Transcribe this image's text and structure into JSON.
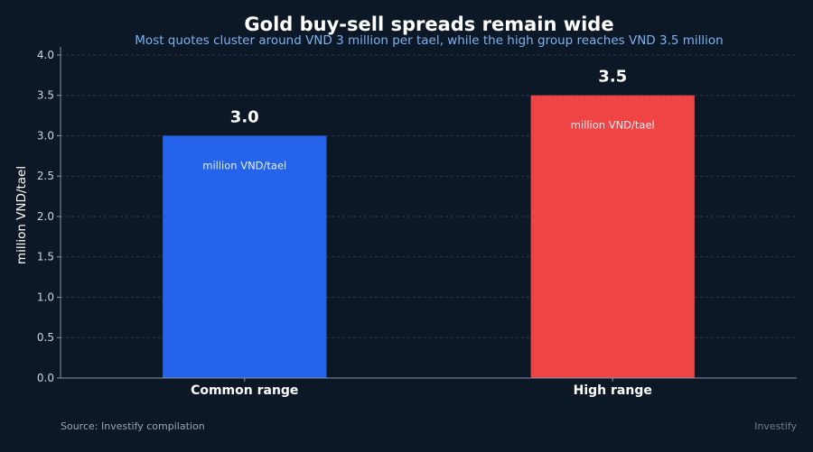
{
  "chart_data": {
    "type": "bar",
    "title": "Gold buy-sell spreads remain wide",
    "subtitle": "Most quotes cluster around VND 3 million per tael, while the high group reaches VND 3.5 million",
    "ylabel": "million VND/tael",
    "xlabel": "",
    "categories": [
      "Common range",
      "High range"
    ],
    "values": [
      3.0,
      3.5
    ],
    "value_labels": [
      "3.0",
      "3.5"
    ],
    "bar_unit_labels": [
      "million VND/tael",
      "million VND/tael"
    ],
    "bar_colors": [
      "#2563eb",
      "#ef4444"
    ],
    "ylim": [
      0,
      4.1
    ],
    "yticks": [
      0.0,
      0.5,
      1.0,
      1.5,
      2.0,
      2.5,
      3.0,
      3.5,
      4.0
    ],
    "ytick_labels": [
      "0.0",
      "0.5",
      "1.0",
      "1.5",
      "2.0",
      "2.5",
      "3.0",
      "3.5",
      "4.0"
    ],
    "grid": true,
    "legend": "none"
  },
  "footer": {
    "source": "Source: Investify compilation",
    "brand": "Investify"
  }
}
